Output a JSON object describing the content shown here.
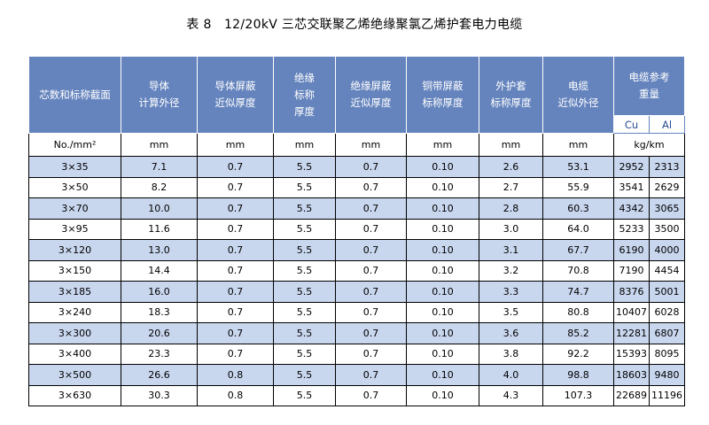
{
  "title": "表 8　12/20kV 三芯交联聚乙烯绝缘聚氯乙烯护套电力电缆",
  "headers": {
    "col1": [
      "芯数和标称截面"
    ],
    "col2": [
      "导体",
      "计算外径"
    ],
    "col3": [
      "导体屏蔽",
      "近似厚度"
    ],
    "col4": [
      "绝缘",
      "标称",
      "厚度"
    ],
    "col5": [
      "绝缘屏蔽",
      "近似厚度"
    ],
    "col6": [
      "铜带屏蔽",
      "标称厚度"
    ],
    "col7": [
      "外护套",
      "标称厚度"
    ],
    "col8": [
      "电缆",
      "近似外径"
    ],
    "col9": [
      "电缆参考",
      "重量"
    ],
    "cu": "Cu",
    "al": "Al"
  },
  "units": [
    "No./mm²",
    "mm",
    "mm",
    "mm",
    "mm",
    "mm",
    "mm",
    "mm",
    "kg/km"
  ],
  "rows": [
    [
      "3×35",
      "7.1",
      "0.7",
      "5.5",
      "0.7",
      "0.10",
      "2.6",
      "53.1",
      "2952",
      "2313"
    ],
    [
      "3×50",
      "8.2",
      "0.7",
      "5.5",
      "0.7",
      "0.10",
      "2.7",
      "55.9",
      "3541",
      "2629"
    ],
    [
      "3×70",
      "10.0",
      "0.7",
      "5.5",
      "0.7",
      "0.10",
      "2.8",
      "60.3",
      "4342",
      "3065"
    ],
    [
      "3×95",
      "11.6",
      "0.7",
      "5.5",
      "0.7",
      "0.10",
      "3.0",
      "64.0",
      "5233",
      "3500"
    ],
    [
      "3×120",
      "13.0",
      "0.7",
      "5.5",
      "0.7",
      "0.10",
      "3.1",
      "67.7",
      "6190",
      "4000"
    ],
    [
      "3×150",
      "14.4",
      "0.7",
      "5.5",
      "0.7",
      "0.10",
      "3.2",
      "70.8",
      "7190",
      "4454"
    ],
    [
      "3×185",
      "16.0",
      "0.7",
      "5.5",
      "0.7",
      "0.10",
      "3.3",
      "74.7",
      "8376",
      "5001"
    ],
    [
      "3×240",
      "18.3",
      "0.7",
      "5.5",
      "0.7",
      "0.10",
      "3.5",
      "80.8",
      "10407",
      "6028"
    ],
    [
      "3×300",
      "20.6",
      "0.7",
      "5.5",
      "0.7",
      "0.10",
      "3.6",
      "85.2",
      "12281",
      "6807"
    ],
    [
      "3×400",
      "23.3",
      "0.7",
      "5.5",
      "0.7",
      "0.10",
      "3.8",
      "92.2",
      "15393",
      "8095"
    ],
    [
      "3×500",
      "26.6",
      "0.8",
      "5.5",
      "0.7",
      "0.10",
      "4.0",
      "98.8",
      "18603",
      "9480"
    ],
    [
      "3×630",
      "30.3",
      "0.8",
      "5.5",
      "0.7",
      "0.10",
      "4.3",
      "107.3",
      "22689",
      "11196"
    ]
  ],
  "colors": {
    "header_bg": "#6584bd",
    "stripe_bg": "#c8d6ee",
    "sub_header_text": "#2a4d92"
  }
}
